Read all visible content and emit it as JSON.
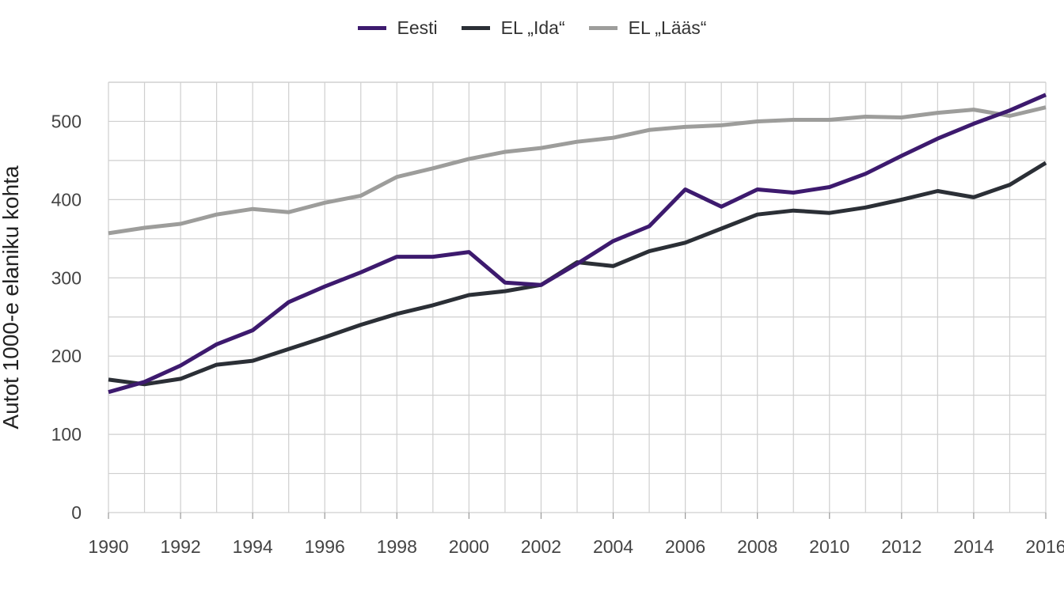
{
  "chart_data": {
    "type": "line",
    "title": "",
    "xlabel": "",
    "ylabel": "Autot 1000-e elaniku kohta",
    "x": [
      1990,
      1991,
      1992,
      1993,
      1994,
      1995,
      1996,
      1997,
      1998,
      1999,
      2000,
      2001,
      2002,
      2003,
      2004,
      2005,
      2006,
      2007,
      2008,
      2009,
      2010,
      2011,
      2012,
      2013,
      2014,
      2015,
      2016
    ],
    "xticks": [
      1990,
      1992,
      1994,
      1996,
      1998,
      2000,
      2002,
      2004,
      2006,
      2008,
      2010,
      2012,
      2014,
      2016
    ],
    "yticks": [
      0,
      100,
      200,
      300,
      400,
      500
    ],
    "xlim": [
      1990,
      2016
    ],
    "ylim": [
      0,
      550
    ],
    "grid": true,
    "legend_position": "top-center",
    "series": [
      {
        "name": "Eesti",
        "color": "#3d1a6e",
        "values": [
          154,
          167,
          188,
          215,
          233,
          269,
          289,
          307,
          327,
          327,
          333,
          294,
          291,
          318,
          347,
          366,
          413,
          391,
          413,
          409,
          416,
          433,
          456,
          478,
          497,
          514,
          534
        ]
      },
      {
        "name": "EL „Ida“",
        "color": "#2b2f36",
        "values": [
          170,
          164,
          171,
          189,
          194,
          209,
          224,
          240,
          254,
          265,
          278,
          283,
          291,
          320,
          315,
          334,
          345,
          363,
          381,
          386,
          383,
          390,
          400,
          411,
          403,
          419,
          447
        ]
      },
      {
        "name": "EL „Lääs“",
        "color": "#9d9d9b",
        "values": [
          357,
          364,
          369,
          381,
          388,
          384,
          396,
          405,
          429,
          440,
          452,
          461,
          466,
          474,
          479,
          489,
          493,
          495,
          500,
          502,
          502,
          506,
          505,
          511,
          515,
          507,
          518
        ]
      }
    ]
  }
}
